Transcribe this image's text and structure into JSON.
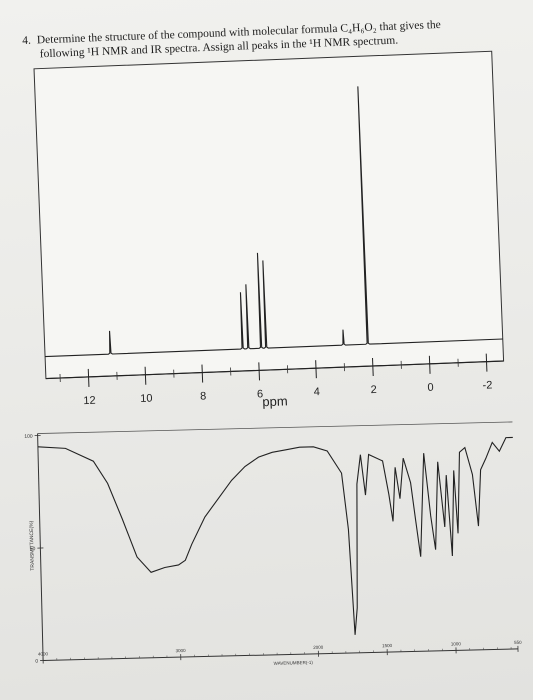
{
  "question": {
    "number": "4.",
    "line1": "Determine the structure of the compound with molecular formula C₄H₆O₂ that gives the",
    "line2": "following ¹H NMR and IR spectra. Assign all peaks in the ¹H NMR spectrum."
  },
  "chart_data": [
    {
      "type": "line",
      "title": "",
      "xlabel": "ppm",
      "ylabel": "",
      "x_reversed": true,
      "xlim": [
        13.5,
        -2.6
      ],
      "x_ticks": [
        "12",
        "10",
        "8",
        "6",
        "4",
        "2",
        "0",
        "-2"
      ],
      "grid": false,
      "peaks": [
        {
          "ppm": 11.2,
          "relative_height": 0.09
        },
        {
          "ppm": 6.55,
          "relative_height": 0.22
        },
        {
          "ppm": 6.35,
          "relative_height": 0.25
        },
        {
          "ppm": 5.9,
          "relative_height": 0.37
        },
        {
          "ppm": 5.72,
          "relative_height": 0.34
        },
        {
          "ppm": 3.0,
          "relative_height": 0.06
        },
        {
          "ppm": 2.15,
          "relative_height": 1.0
        }
      ]
    },
    {
      "type": "line",
      "title": "",
      "xlabel": "WAVENUMBER(-1)",
      "ylabel": "TRANSMITTANCE(%)",
      "x_reversed": true,
      "xlim": [
        4000,
        550
      ],
      "ylim": [
        0,
        100
      ],
      "x_ticks": [
        "4000",
        "3000",
        "2000",
        "1500",
        "1000",
        "550"
      ],
      "y_ticks": [
        "0",
        "50",
        "100"
      ],
      "grid": false,
      "series": [
        {
          "x": [
            4000,
            3800,
            3600,
            3500,
            3400,
            3300,
            3200,
            3100,
            3000,
            2950,
            2900,
            2800,
            2700,
            2600,
            2500,
            2400,
            2300,
            2200,
            2100,
            2000,
            1900,
            1800,
            1760,
            1730,
            1710,
            1690,
            1660,
            1630,
            1600,
            1500,
            1460,
            1435,
            1410,
            1380,
            1350,
            1300,
            1270,
            1240,
            1200,
            1160,
            1130,
            1100,
            1060,
            1040,
            1010,
            985,
            965,
            940,
            900,
            850,
            815,
            790,
            750,
            700,
            650,
            600,
            550
          ],
          "y": [
            95,
            94,
            88,
            78,
            62,
            45,
            38,
            40,
            41,
            43,
            50,
            62,
            70,
            78,
            84,
            88,
            90,
            91,
            92,
            92,
            90,
            80,
            55,
            8,
            20,
            75,
            88,
            70,
            88,
            85,
            70,
            58,
            82,
            68,
            86,
            75,
            58,
            42,
            88,
            60,
            45,
            84,
            55,
            78,
            42,
            80,
            52,
            88,
            90,
            78,
            55,
            80,
            85,
            92,
            88,
            94,
            94
          ]
        }
      ]
    }
  ]
}
